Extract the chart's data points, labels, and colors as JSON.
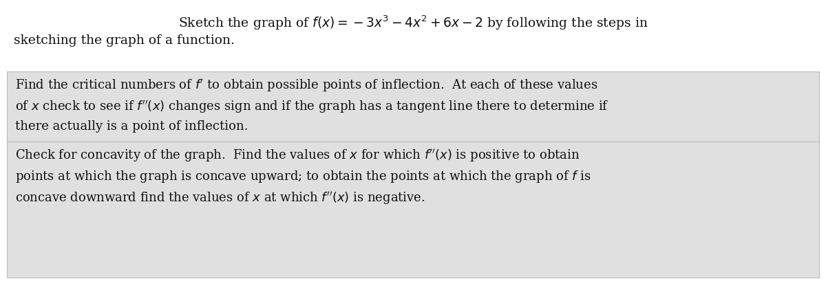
{
  "background_color": "#ffffff",
  "box_background_color": "#e0e0e0",
  "title_line1": "Sketch the graph of $f(x) = -3x^3 - 4x^2 + 6x - 2$ by following the steps in",
  "title_line2": "sketching the graph of a function.",
  "box1_text_lines": [
    "Find the critical numbers of $f'$ to obtain possible points of inflection.  At each of these values",
    "of $x$ check to see if $f''(x)$ changes sign and if the graph has a tangent line there to determine if",
    "there actually is a point of inflection."
  ],
  "box2_text_lines": [
    "Check for concavity of the graph.  Find the values of $x$ for which $f''(x)$ is positive to obtain",
    "points at which the graph is concave upward; to obtain the points at which the graph of $f$ is",
    "concave downward find the values of $x$ at which $f''(x)$ is negative."
  ],
  "font_size_title": 13.5,
  "font_size_body": 13.0,
  "text_color": "#111111",
  "box_edge_color": "#bbbbbb"
}
